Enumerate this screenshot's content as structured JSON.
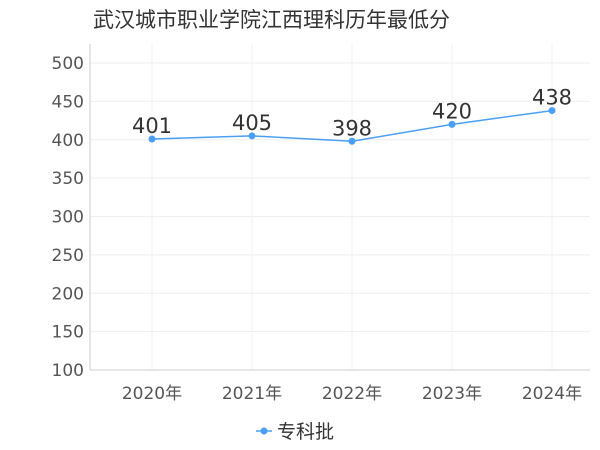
{
  "chart_data": {
    "type": "line",
    "title": "武汉城市职业学院江西理科历年最低分",
    "categories": [
      "2020年",
      "2021年",
      "2022年",
      "2023年",
      "2024年"
    ],
    "series": [
      {
        "name": "专科批",
        "values": [
          401,
          405,
          398,
          420,
          438
        ],
        "color": "#4a9ff5"
      }
    ],
    "ylim": [
      100,
      500
    ],
    "yticks": [
      100,
      150,
      200,
      250,
      300,
      350,
      400,
      450,
      500
    ],
    "grid": true,
    "legend": "bottom-center"
  }
}
